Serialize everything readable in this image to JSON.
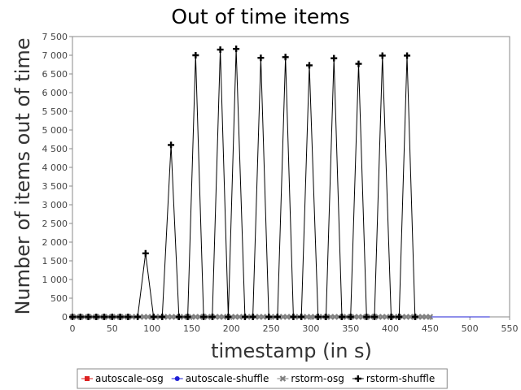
{
  "chart_data": {
    "type": "line",
    "title": "Out of time items",
    "xlabel": "timestamp (in s)",
    "ylabel": "Number of items out of time",
    "xlim": [
      0,
      550
    ],
    "ylim": [
      0,
      7500
    ],
    "x_ticks": [
      0,
      50,
      100,
      150,
      200,
      250,
      300,
      350,
      400,
      450,
      500,
      550
    ],
    "x_tick_labels": [
      "0",
      "50",
      "100",
      "150",
      "200",
      "250",
      "300",
      "350",
      "400",
      "450",
      "500",
      "550"
    ],
    "y_ticks": [
      0,
      500,
      1000,
      1500,
      2000,
      2500,
      3000,
      3500,
      4000,
      4500,
      5000,
      5500,
      6000,
      6500,
      7000,
      7500
    ],
    "y_tick_labels": [
      "0",
      "500",
      "1 000",
      "1 500",
      "2 000",
      "2 500",
      "3 000",
      "3 500",
      "4 000",
      "4 500",
      "5 000",
      "5 500",
      "6 000",
      "6 500",
      "7 000",
      "7 500"
    ],
    "grid": false,
    "legend_position": "bottom",
    "series": [
      {
        "name": "autoscale-osg",
        "color": "#dd2222",
        "marker": "square",
        "x": [
          0,
          525
        ],
        "y": [
          0,
          0
        ]
      },
      {
        "name": "autoscale-shuffle",
        "color": "#1f1fd6",
        "marker": "circle",
        "x": [
          0,
          525
        ],
        "y": [
          0,
          0
        ]
      },
      {
        "name": "rstorm-osg",
        "color": "#808080",
        "marker": "x",
        "x": [
          0,
          5,
          10,
          15,
          20,
          25,
          30,
          35,
          40,
          45,
          50,
          55,
          60,
          65,
          70,
          75,
          80,
          85,
          90,
          95,
          100,
          105,
          110,
          115,
          120,
          125,
          130,
          135,
          140,
          145,
          150,
          155,
          160,
          165,
          170,
          175,
          180,
          185,
          190,
          195,
          200,
          205,
          210,
          215,
          220,
          225,
          230,
          235,
          240,
          245,
          250,
          255,
          260,
          265,
          270,
          275,
          280,
          285,
          290,
          295,
          300,
          305,
          310,
          315,
          320,
          325,
          330,
          335,
          340,
          345,
          350,
          355,
          360,
          365,
          370,
          375,
          380,
          385,
          390,
          395,
          400,
          405,
          410,
          415,
          420,
          425,
          430,
          435,
          440,
          445,
          450
        ],
        "y": [
          0,
          0,
          0,
          0,
          0,
          0,
          0,
          0,
          0,
          0,
          0,
          0,
          0,
          0,
          0,
          0,
          0,
          0,
          0,
          0,
          0,
          0,
          0,
          0,
          0,
          0,
          0,
          0,
          0,
          0,
          0,
          0,
          0,
          0,
          0,
          0,
          0,
          0,
          0,
          0,
          0,
          0,
          0,
          0,
          0,
          0,
          0,
          0,
          0,
          0,
          0,
          0,
          0,
          0,
          0,
          0,
          0,
          0,
          0,
          0,
          0,
          0,
          0,
          0,
          0,
          0,
          0,
          0,
          0,
          0,
          0,
          0,
          0,
          0,
          0,
          0,
          0,
          0,
          0,
          0,
          0,
          0,
          0,
          0,
          0,
          0,
          0,
          0,
          0,
          0,
          0
        ]
      },
      {
        "name": "rstorm-shuffle",
        "color": "#000000",
        "marker": "plus",
        "x": [
          0,
          10,
          20,
          30,
          40,
          50,
          60,
          70,
          82,
          92,
          102,
          113,
          124,
          134,
          145,
          155,
          165,
          176,
          186,
          196,
          206,
          217,
          227,
          237,
          247,
          258,
          268,
          278,
          288,
          298,
          309,
          319,
          329,
          339,
          350,
          360,
          370,
          380,
          390,
          401,
          411,
          421,
          431
        ],
        "y": [
          0,
          0,
          0,
          0,
          0,
          0,
          0,
          0,
          0,
          1700,
          0,
          0,
          4600,
          0,
          0,
          7000,
          0,
          0,
          7150,
          0,
          7170,
          0,
          0,
          6930,
          0,
          0,
          6950,
          0,
          0,
          6730,
          0,
          0,
          6920,
          0,
          0,
          6770,
          0,
          0,
          6990,
          0,
          0,
          6990,
          0
        ]
      }
    ]
  }
}
